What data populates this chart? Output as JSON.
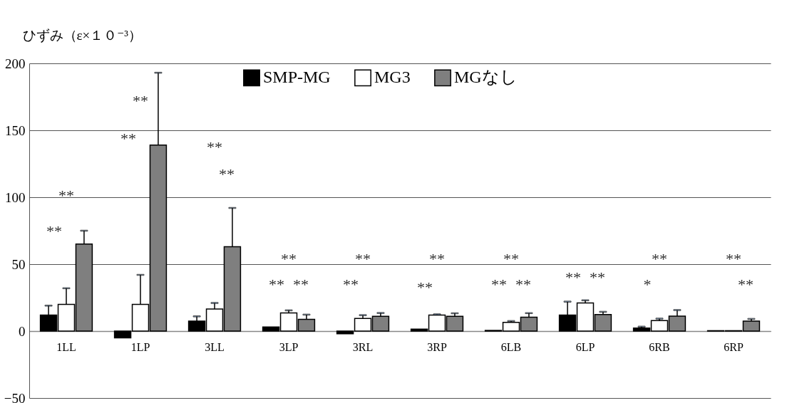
{
  "chart_data": {
    "type": "bar",
    "ylabel": "ひずみ（ε×１０⁻³）",
    "categories": [
      "1LL",
      "1LP",
      "3LL",
      "3LP",
      "3RL",
      "3RP",
      "6LB",
      "6LP",
      "6RB",
      "6RP"
    ],
    "series": [
      {
        "name": "SMP-MG",
        "color": "#000000",
        "values": [
          12,
          -5,
          7.5,
          3,
          -2,
          1.5,
          0.5,
          12,
          2.3,
          0.3
        ],
        "errors": [
          7,
          null,
          3.5,
          null,
          null,
          null,
          null,
          10,
          1,
          null
        ]
      },
      {
        "name": "MG3",
        "color": "#ffffff",
        "values": [
          20,
          20,
          16.5,
          13.5,
          9.4,
          12,
          6.5,
          21,
          7.8,
          0.3
        ],
        "errors": [
          12,
          22,
          4.5,
          2,
          2.5,
          0.5,
          1,
          2,
          1.5,
          null
        ]
      },
      {
        "name": "MGなし",
        "color": "#7f7f7f",
        "values": [
          65,
          139,
          63,
          8.8,
          11,
          11,
          10.4,
          12.4,
          11.2,
          7.5
        ],
        "errors": [
          10,
          54,
          29,
          3.5,
          2.5,
          2.3,
          3,
          2,
          4.5,
          1.6
        ]
      }
    ],
    "ylim": [
      -50,
      200
    ],
    "yticks": [
      -50,
      0,
      50,
      100,
      150,
      200
    ],
    "grid": "y",
    "legend": "top",
    "annotations": [
      "**",
      "**",
      "**",
      "**",
      "**",
      "**",
      "**",
      "**",
      "**",
      "**",
      "**",
      "**",
      "**",
      "**",
      "**",
      "**",
      "**",
      "**",
      "**",
      "*",
      "**",
      "**"
    ]
  }
}
